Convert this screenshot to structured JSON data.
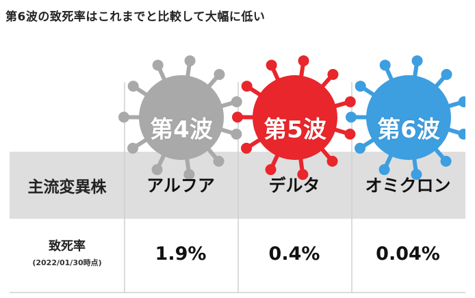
{
  "headline": "第6波の致死率はこれまでと比較して大幅に低い",
  "table": {
    "row_header_variant": "主流変異株",
    "row_header_rate": "致死率",
    "rate_note": "(2022/01/30時点)",
    "waves": [
      {
        "wave_label": "第4波",
        "variant": "アルフア",
        "rate": "1.9%",
        "color": "#a9a9a9"
      },
      {
        "wave_label": "第5波",
        "variant": "デルタ",
        "rate": "0.4%",
        "color": "#e8262b"
      },
      {
        "wave_label": "第6波",
        "variant": "オミクロン",
        "rate": "0.04%",
        "color": "#3d9ee0"
      }
    ]
  },
  "colors": {
    "header_band": "#dedede",
    "grid_line": "#cfcfcf"
  },
  "icons": [
    "virus-icon"
  ]
}
